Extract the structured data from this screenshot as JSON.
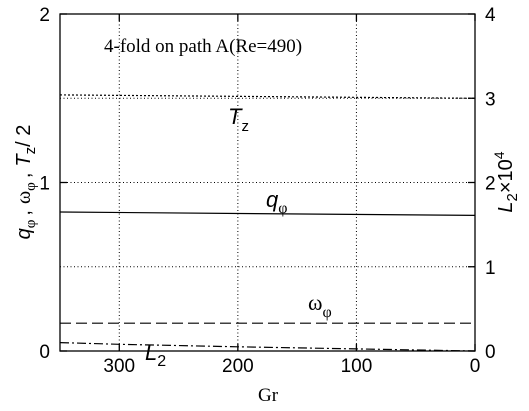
{
  "chart_data": {
    "type": "line",
    "title": "4-fold on path A(Re=490)",
    "xlabel": "Gr",
    "xlim": [
      350,
      0
    ],
    "ylim_left": [
      0,
      2
    ],
    "ylim_right": [
      0,
      4
    ],
    "grid": true,
    "x_ticks": [
      300,
      200,
      100,
      0
    ],
    "y_left_ticks": [
      0,
      1,
      2
    ],
    "y_right_ticks": [
      0,
      1,
      2,
      3,
      4
    ],
    "ylabel_left": {
      "q": "q",
      "q_sub": "φ",
      "omega": "ω",
      "omega_sub": "φ",
      "t": "T",
      "t_sub": "z",
      "t_rest": "/ 2",
      "sep": ","
    },
    "ylabel_right": {
      "base": "L",
      "sub": "2",
      "times": "×10",
      "exp": "4"
    },
    "series": [
      {
        "name": "Tz",
        "label_base": "T",
        "label_sub": "z",
        "axis": "left",
        "style": "dotted",
        "x": [
          350,
          0
        ],
        "y": [
          1.52,
          1.5
        ]
      },
      {
        "name": "qφ",
        "label_base": "q",
        "label_sub": "φ",
        "axis": "left",
        "style": "solid",
        "x": [
          350,
          0
        ],
        "y": [
          0.825,
          0.805
        ]
      },
      {
        "name": "ωφ",
        "label_base": "ω",
        "label_sub": "φ",
        "axis": "left",
        "style": "dashed",
        "x": [
          350,
          0
        ],
        "y": [
          0.165,
          0.165
        ]
      },
      {
        "name": "L2",
        "label_base": "L",
        "label_sub": "2",
        "axis": "right",
        "style": "dashdot",
        "x": [
          350,
          300,
          200,
          100,
          0
        ],
        "y": [
          0.1,
          0.08,
          0.05,
          0.025,
          0.0
        ]
      }
    ]
  }
}
